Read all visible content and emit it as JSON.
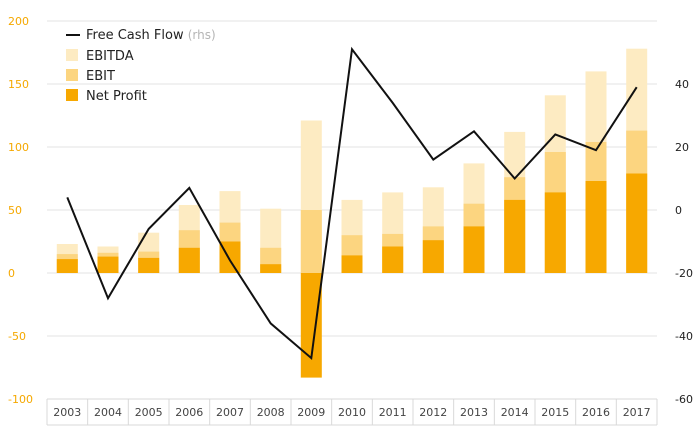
{
  "colors": {
    "ebitda": "#fdebc2",
    "ebit": "#fcd580",
    "net_profit": "#f7a800",
    "fcf_line": "#111111",
    "left_axis": "#f5a800",
    "right_axis": "#222222",
    "grid": "#e3e3e3",
    "axis_box": "#d9d9d9"
  },
  "legend": {
    "fcf": "Free Cash Flow",
    "fcf_suffix": "(rhs)",
    "ebitda": "EBITDA",
    "ebit": "EBIT",
    "net_profit": "Net Profit"
  },
  "chart_data": {
    "type": "bar",
    "title": "",
    "xlabel": "",
    "ylabel": "",
    "categories": [
      "2003",
      "2004",
      "2005",
      "2006",
      "2007",
      "2008",
      "2009",
      "2010",
      "2011",
      "2012",
      "2013",
      "2014",
      "2015",
      "2016",
      "2017"
    ],
    "left_axis": {
      "ylim": [
        -100,
        200
      ],
      "ticks": [
        200,
        150,
        100,
        50,
        0,
        -50,
        -100
      ]
    },
    "right_axis": {
      "ylim": [
        -60,
        60
      ],
      "ticks": [
        40,
        20,
        0,
        -20,
        -40,
        -60
      ]
    },
    "grid": true,
    "legend_position": "top-left",
    "series": [
      {
        "name": "EBITDA",
        "type": "bar",
        "axis": "left",
        "values": [
          23,
          21,
          32,
          54,
          65,
          51,
          121,
          58,
          64,
          68,
          87,
          112,
          141,
          160,
          178
        ]
      },
      {
        "name": "EBIT",
        "type": "bar",
        "axis": "left",
        "values": [
          15,
          16,
          17,
          34,
          40,
          20,
          50,
          30,
          31,
          37,
          55,
          76,
          96,
          104,
          113
        ]
      },
      {
        "name": "Net Profit",
        "type": "bar",
        "axis": "left",
        "values": [
          11,
          13,
          12,
          20,
          25,
          7,
          -83,
          14,
          21,
          26,
          37,
          58,
          64,
          73,
          79
        ]
      },
      {
        "name": "Free Cash Flow (rhs)",
        "type": "line",
        "axis": "right",
        "values": [
          4,
          -28,
          -6,
          7,
          -16,
          -36,
          -47,
          51,
          34,
          16,
          25,
          10,
          24,
          19,
          39
        ]
      }
    ]
  }
}
